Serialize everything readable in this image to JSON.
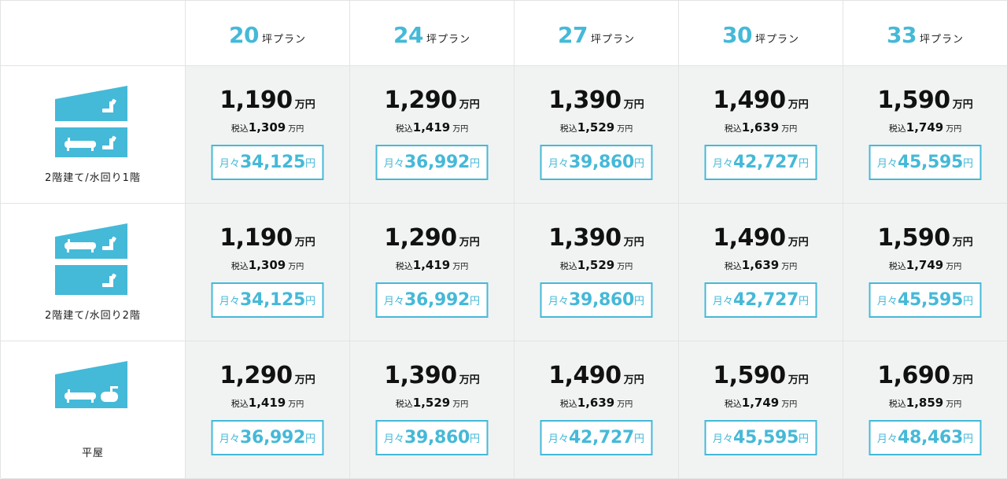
{
  "plans": [
    {
      "num": "20",
      "unit": "坪プラン"
    },
    {
      "num": "24",
      "unit": "坪プラン"
    },
    {
      "num": "27",
      "unit": "坪プラン"
    },
    {
      "num": "30",
      "unit": "坪プラン"
    },
    {
      "num": "33",
      "unit": "坪プラン"
    }
  ],
  "labels": {
    "man_yen": "万円",
    "tax_prefix": "税込",
    "monthly_prefix": "月々",
    "yen": "円"
  },
  "colors": {
    "accent": "#45b9d8",
    "cell_bg": "#f1f3f3",
    "border": "#e2e4e4"
  },
  "rows": [
    {
      "label": "2階建て/水回り1階",
      "icon": "two-story-wet-area-first-floor-icon",
      "cells": [
        {
          "price": "1,190",
          "tax": "1,309",
          "monthly": "34,125"
        },
        {
          "price": "1,290",
          "tax": "1,419",
          "monthly": "36,992"
        },
        {
          "price": "1,390",
          "tax": "1,529",
          "monthly": "39,860"
        },
        {
          "price": "1,490",
          "tax": "1,639",
          "monthly": "42,727"
        },
        {
          "price": "1,590",
          "tax": "1,749",
          "monthly": "45,595"
        }
      ]
    },
    {
      "label": "2階建て/水回り2階",
      "icon": "two-story-wet-area-second-floor-icon",
      "cells": [
        {
          "price": "1,190",
          "tax": "1,309",
          "monthly": "34,125"
        },
        {
          "price": "1,290",
          "tax": "1,419",
          "monthly": "36,992"
        },
        {
          "price": "1,390",
          "tax": "1,529",
          "monthly": "39,860"
        },
        {
          "price": "1,490",
          "tax": "1,639",
          "monthly": "42,727"
        },
        {
          "price": "1,590",
          "tax": "1,749",
          "monthly": "45,595"
        }
      ]
    },
    {
      "label": "平屋",
      "icon": "single-story-house-icon",
      "cells": [
        {
          "price": "1,290",
          "tax": "1,419",
          "monthly": "36,992"
        },
        {
          "price": "1,390",
          "tax": "1,529",
          "monthly": "39,860"
        },
        {
          "price": "1,490",
          "tax": "1,639",
          "monthly": "42,727"
        },
        {
          "price": "1,590",
          "tax": "1,749",
          "monthly": "45,595"
        },
        {
          "price": "1,690",
          "tax": "1,859",
          "monthly": "48,463"
        }
      ]
    }
  ]
}
